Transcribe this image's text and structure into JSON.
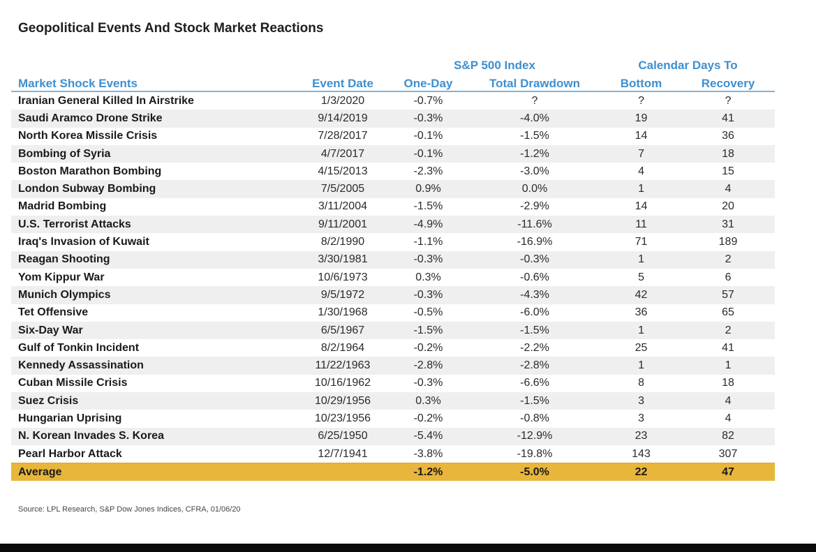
{
  "title": "Geopolitical Events And Stock Market Reactions",
  "header": {
    "group_sp500": "S&P 500 Index",
    "group_calendar": "Calendar Days To",
    "columns": [
      "Market Shock Events",
      "Event Date",
      "One-Day",
      "Total Drawdown",
      "Bottom",
      "Recovery"
    ]
  },
  "rows": [
    [
      "Iranian General Killed In Airstrike",
      "1/3/2020",
      "-0.7%",
      "?",
      "?",
      "?"
    ],
    [
      "Saudi Aramco Drone Strike",
      "9/14/2019",
      "-0.3%",
      "-4.0%",
      "19",
      "41"
    ],
    [
      "North Korea Missile Crisis",
      "7/28/2017",
      "-0.1%",
      "-1.5%",
      "14",
      "36"
    ],
    [
      "Bombing of Syria",
      "4/7/2017",
      "-0.1%",
      "-1.2%",
      "7",
      "18"
    ],
    [
      "Boston Marathon Bombing",
      "4/15/2013",
      "-2.3%",
      "-3.0%",
      "4",
      "15"
    ],
    [
      "London Subway Bombing",
      "7/5/2005",
      "0.9%",
      "0.0%",
      "1",
      "4"
    ],
    [
      "Madrid Bombing",
      "3/11/2004",
      "-1.5%",
      "-2.9%",
      "14",
      "20"
    ],
    [
      "U.S. Terrorist Attacks",
      "9/11/2001",
      "-4.9%",
      "-11.6%",
      "11",
      "31"
    ],
    [
      "Iraq's Invasion of Kuwait",
      "8/2/1990",
      "-1.1%",
      "-16.9%",
      "71",
      "189"
    ],
    [
      "Reagan Shooting",
      "3/30/1981",
      "-0.3%",
      "-0.3%",
      "1",
      "2"
    ],
    [
      "Yom Kippur War",
      "10/6/1973",
      "0.3%",
      "-0.6%",
      "5",
      "6"
    ],
    [
      "Munich Olympics",
      "9/5/1972",
      "-0.3%",
      "-4.3%",
      "42",
      "57"
    ],
    [
      "Tet Offensive",
      "1/30/1968",
      "-0.5%",
      "-6.0%",
      "36",
      "65"
    ],
    [
      "Six-Day War",
      "6/5/1967",
      "-1.5%",
      "-1.5%",
      "1",
      "2"
    ],
    [
      "Gulf of Tonkin Incident",
      "8/2/1964",
      "-0.2%",
      "-2.2%",
      "25",
      "41"
    ],
    [
      "Kennedy Assassination",
      "11/22/1963",
      "-2.8%",
      "-2.8%",
      "1",
      "1"
    ],
    [
      "Cuban Missile Crisis",
      "10/16/1962",
      "-0.3%",
      "-6.6%",
      "8",
      "18"
    ],
    [
      "Suez Crisis",
      "10/29/1956",
      "0.3%",
      "-1.5%",
      "3",
      "4"
    ],
    [
      "Hungarian Uprising",
      "10/23/1956",
      "-0.2%",
      "-0.8%",
      "3",
      "4"
    ],
    [
      "N. Korean Invades S. Korea",
      "6/25/1950",
      "-5.4%",
      "-12.9%",
      "23",
      "82"
    ],
    [
      "Pearl Harbor Attack",
      "12/7/1941",
      "-3.8%",
      "-19.8%",
      "143",
      "307"
    ]
  ],
  "average": [
    "Average",
    "",
    "-1.2%",
    "-5.0%",
    "22",
    "47"
  ],
  "source": "Source: LPL Research, S&P Dow Jones Indices, CFRA, 01/06/20",
  "colors": {
    "header_text": "#3e8fd0",
    "stripe": "#efefef",
    "average_row": "#e8b63a"
  },
  "chart_data": {
    "type": "table",
    "title": "Geopolitical Events And Stock Market Reactions",
    "columns": [
      "Market Shock Events",
      "Event Date",
      "One-Day",
      "Total Drawdown",
      "Bottom",
      "Recovery"
    ],
    "column_groups": [
      {
        "name": "S&P 500 Index",
        "columns": [
          "One-Day",
          "Total Drawdown"
        ]
      },
      {
        "name": "Calendar Days To",
        "columns": [
          "Bottom",
          "Recovery"
        ]
      }
    ]
  }
}
